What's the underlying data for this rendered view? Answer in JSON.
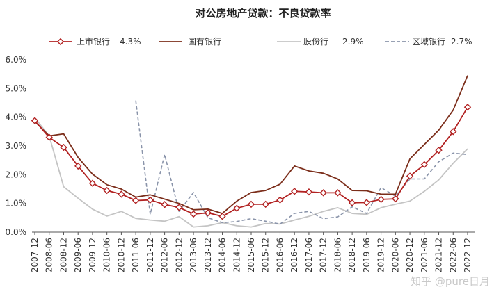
{
  "chart_data": {
    "type": "line",
    "title": "对公房地产贷款：不良贷款率",
    "ylim": [
      0,
      6
    ],
    "yticks": [
      "0.0%",
      "1.0%",
      "2.0%",
      "3.0%",
      "4.0%",
      "5.0%",
      "6.0%"
    ],
    "grid": false,
    "legend_position": "top",
    "categories": [
      "2007-12",
      "2008-06",
      "2008-12",
      "2009-06",
      "2009-12",
      "2010-06",
      "2010-12",
      "2011-06",
      "2011-12",
      "2012-06",
      "2012-12",
      "2013-06",
      "2013-12",
      "2014-06",
      "2014-12",
      "2015-06",
      "2015-12",
      "2016-06",
      "2016-12",
      "2017-06",
      "2017-12",
      "2018-06",
      "2018-12",
      "2019-06",
      "2019-12",
      "2020-06",
      "2020-12",
      "2021-06",
      "2021-12",
      "2022-06",
      "2022-12"
    ],
    "series": [
      {
        "name": "上市银行",
        "legend_value": "4.3%",
        "color": "#b22222",
        "style": "solid-diamond",
        "values": [
          3.88,
          3.3,
          2.95,
          2.3,
          1.7,
          1.45,
          1.32,
          1.1,
          1.12,
          0.96,
          0.86,
          0.63,
          0.67,
          0.55,
          0.83,
          0.97,
          0.97,
          1.12,
          1.42,
          1.4,
          1.37,
          1.37,
          1.02,
          1.03,
          1.14,
          1.16,
          1.95,
          2.35,
          2.85,
          3.5,
          4.35
        ]
      },
      {
        "name": "国有银行",
        "legend_value": "",
        "color": "#7b2d1a",
        "style": "solid",
        "values": [
          3.85,
          3.35,
          3.42,
          2.6,
          2.02,
          1.65,
          1.5,
          1.22,
          1.3,
          1.15,
          1.0,
          0.78,
          0.8,
          0.65,
          1.08,
          1.38,
          1.45,
          1.67,
          2.3,
          2.13,
          2.05,
          1.85,
          1.45,
          1.44,
          1.32,
          1.32,
          2.55,
          3.05,
          3.55,
          4.25,
          5.45
        ]
      },
      {
        "name": "股份行",
        "legend_value": "2.9%",
        "color": "#c4c4c4",
        "style": "solid",
        "values": [
          3.98,
          3.35,
          1.58,
          1.18,
          0.8,
          0.56,
          0.72,
          0.48,
          0.42,
          0.38,
          0.54,
          0.18,
          0.22,
          0.33,
          0.22,
          0.18,
          0.3,
          0.28,
          0.42,
          0.55,
          0.72,
          0.85,
          0.65,
          0.62,
          0.85,
          0.97,
          1.08,
          1.42,
          1.82,
          2.4,
          2.9
        ]
      },
      {
        "name": "区域银行",
        "legend_value": "2.7%",
        "color": "#8a94aa",
        "style": "dashed",
        "values": [
          null,
          null,
          null,
          null,
          null,
          null,
          null,
          4.58,
          0.62,
          2.7,
          0.72,
          1.38,
          0.5,
          0.33,
          0.37,
          0.47,
          0.38,
          0.28,
          0.65,
          0.72,
          0.47,
          0.53,
          0.88,
          0.65,
          1.55,
          1.25,
          1.85,
          1.85,
          2.45,
          2.75,
          2.7
        ]
      }
    ]
  },
  "watermark": "知乎 @pure日月"
}
